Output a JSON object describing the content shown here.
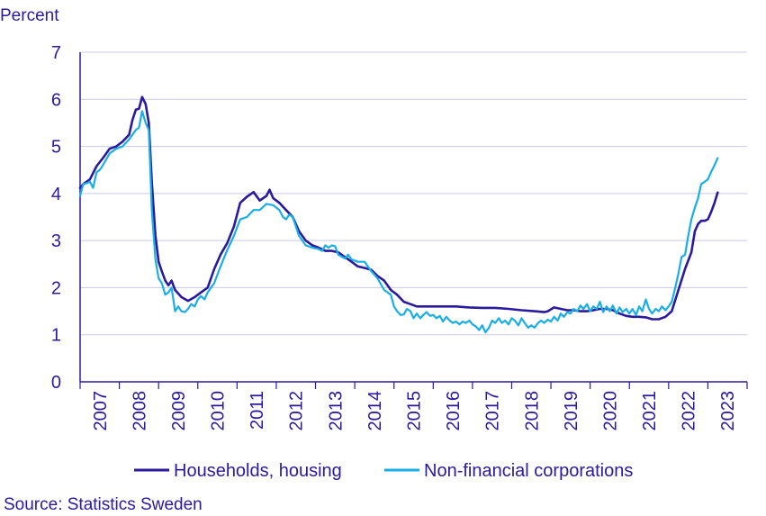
{
  "chart_data": {
    "type": "line",
    "y_unit_label": "Percent",
    "ylim": [
      0,
      7
    ],
    "yticks": [
      0,
      1,
      2,
      3,
      4,
      5,
      6,
      7
    ],
    "xlim": [
      2007,
      2024
    ],
    "xticks": [
      "2007",
      "2008",
      "2009",
      "2010",
      "2011",
      "2012",
      "2013",
      "2014",
      "2015",
      "2016",
      "2017",
      "2018",
      "2019",
      "2020",
      "2021",
      "2022",
      "2023"
    ],
    "grid": true,
    "legend_position": "bottom",
    "series": [
      {
        "name": "Households, housing",
        "color": "#2a1a9e",
        "points": [
          [
            2007.0,
            4.12
          ],
          [
            2007.08,
            4.2
          ],
          [
            2007.25,
            4.3
          ],
          [
            2007.42,
            4.58
          ],
          [
            2007.58,
            4.75
          ],
          [
            2007.75,
            4.95
          ],
          [
            2007.92,
            5.0
          ],
          [
            2008.08,
            5.1
          ],
          [
            2008.25,
            5.25
          ],
          [
            2008.33,
            5.55
          ],
          [
            2008.42,
            5.78
          ],
          [
            2008.5,
            5.8
          ],
          [
            2008.58,
            6.05
          ],
          [
            2008.67,
            5.9
          ],
          [
            2008.75,
            5.5
          ],
          [
            2008.83,
            4.2
          ],
          [
            2008.92,
            3.1
          ],
          [
            2009.0,
            2.55
          ],
          [
            2009.08,
            2.35
          ],
          [
            2009.17,
            2.15
          ],
          [
            2009.25,
            2.05
          ],
          [
            2009.33,
            2.15
          ],
          [
            2009.42,
            1.95
          ],
          [
            2009.58,
            1.8
          ],
          [
            2009.75,
            1.72
          ],
          [
            2009.92,
            1.8
          ],
          [
            2010.08,
            1.9
          ],
          [
            2010.25,
            2.0
          ],
          [
            2010.42,
            2.4
          ],
          [
            2010.58,
            2.7
          ],
          [
            2010.75,
            2.95
          ],
          [
            2010.92,
            3.3
          ],
          [
            2011.08,
            3.8
          ],
          [
            2011.25,
            3.93
          ],
          [
            2011.42,
            4.03
          ],
          [
            2011.58,
            3.85
          ],
          [
            2011.75,
            3.95
          ],
          [
            2011.83,
            4.08
          ],
          [
            2011.92,
            3.9
          ],
          [
            2012.08,
            3.8
          ],
          [
            2012.25,
            3.65
          ],
          [
            2012.42,
            3.5
          ],
          [
            2012.58,
            3.2
          ],
          [
            2012.75,
            3.0
          ],
          [
            2012.92,
            2.9
          ],
          [
            2013.08,
            2.85
          ],
          [
            2013.25,
            2.78
          ],
          [
            2013.42,
            2.78
          ],
          [
            2013.58,
            2.75
          ],
          [
            2013.75,
            2.65
          ],
          [
            2013.92,
            2.55
          ],
          [
            2014.08,
            2.45
          ],
          [
            2014.25,
            2.42
          ],
          [
            2014.42,
            2.38
          ],
          [
            2014.58,
            2.25
          ],
          [
            2014.75,
            2.15
          ],
          [
            2014.92,
            1.95
          ],
          [
            2015.08,
            1.85
          ],
          [
            2015.25,
            1.7
          ],
          [
            2015.42,
            1.65
          ],
          [
            2015.58,
            1.6
          ],
          [
            2015.75,
            1.6
          ],
          [
            2015.92,
            1.6
          ],
          [
            2016.25,
            1.6
          ],
          [
            2016.58,
            1.6
          ],
          [
            2016.92,
            1.58
          ],
          [
            2017.25,
            1.57
          ],
          [
            2017.58,
            1.57
          ],
          [
            2017.92,
            1.55
          ],
          [
            2018.25,
            1.52
          ],
          [
            2018.58,
            1.5
          ],
          [
            2018.83,
            1.48
          ],
          [
            2018.92,
            1.5
          ],
          [
            2019.08,
            1.58
          ],
          [
            2019.25,
            1.55
          ],
          [
            2019.42,
            1.52
          ],
          [
            2019.58,
            1.52
          ],
          [
            2019.75,
            1.5
          ],
          [
            2019.92,
            1.5
          ],
          [
            2020.08,
            1.52
          ],
          [
            2020.25,
            1.55
          ],
          [
            2020.42,
            1.55
          ],
          [
            2020.58,
            1.52
          ],
          [
            2020.75,
            1.45
          ],
          [
            2020.92,
            1.4
          ],
          [
            2021.08,
            1.38
          ],
          [
            2021.25,
            1.38
          ],
          [
            2021.42,
            1.37
          ],
          [
            2021.58,
            1.33
          ],
          [
            2021.75,
            1.33
          ],
          [
            2021.92,
            1.38
          ],
          [
            2022.08,
            1.5
          ],
          [
            2022.25,
            1.95
          ],
          [
            2022.42,
            2.4
          ],
          [
            2022.58,
            2.75
          ],
          [
            2022.67,
            3.2
          ],
          [
            2022.75,
            3.35
          ],
          [
            2022.83,
            3.42
          ],
          [
            2022.92,
            3.42
          ],
          [
            2023.0,
            3.45
          ],
          [
            2023.08,
            3.6
          ],
          [
            2023.17,
            3.8
          ],
          [
            2023.25,
            4.02
          ]
        ]
      },
      {
        "name": "Non-financial corporations",
        "color": "#1aaee6",
        "points": [
          [
            2007.0,
            3.95
          ],
          [
            2007.08,
            4.2
          ],
          [
            2007.17,
            4.22
          ],
          [
            2007.25,
            4.25
          ],
          [
            2007.33,
            4.12
          ],
          [
            2007.42,
            4.45
          ],
          [
            2007.5,
            4.5
          ],
          [
            2007.58,
            4.6
          ],
          [
            2007.75,
            4.85
          ],
          [
            2007.92,
            4.95
          ],
          [
            2008.08,
            5.0
          ],
          [
            2008.25,
            5.15
          ],
          [
            2008.42,
            5.35
          ],
          [
            2008.5,
            5.4
          ],
          [
            2008.58,
            5.75
          ],
          [
            2008.67,
            5.5
          ],
          [
            2008.75,
            5.35
          ],
          [
            2008.83,
            3.6
          ],
          [
            2008.92,
            2.6
          ],
          [
            2009.0,
            2.2
          ],
          [
            2009.08,
            2.1
          ],
          [
            2009.17,
            1.85
          ],
          [
            2009.25,
            1.9
          ],
          [
            2009.33,
            2.0
          ],
          [
            2009.42,
            1.5
          ],
          [
            2009.5,
            1.6
          ],
          [
            2009.58,
            1.5
          ],
          [
            2009.67,
            1.48
          ],
          [
            2009.75,
            1.55
          ],
          [
            2009.83,
            1.65
          ],
          [
            2009.92,
            1.6
          ],
          [
            2010.0,
            1.75
          ],
          [
            2010.08,
            1.82
          ],
          [
            2010.17,
            1.75
          ],
          [
            2010.25,
            1.9
          ],
          [
            2010.42,
            2.1
          ],
          [
            2010.58,
            2.45
          ],
          [
            2010.75,
            2.8
          ],
          [
            2010.92,
            3.1
          ],
          [
            2011.08,
            3.45
          ],
          [
            2011.25,
            3.5
          ],
          [
            2011.42,
            3.65
          ],
          [
            2011.58,
            3.65
          ],
          [
            2011.75,
            3.78
          ],
          [
            2011.92,
            3.75
          ],
          [
            2012.08,
            3.65
          ],
          [
            2012.17,
            3.5
          ],
          [
            2012.25,
            3.45
          ],
          [
            2012.33,
            3.55
          ],
          [
            2012.42,
            3.5
          ],
          [
            2012.58,
            3.1
          ],
          [
            2012.75,
            2.9
          ],
          [
            2012.92,
            2.85
          ],
          [
            2013.08,
            2.82
          ],
          [
            2013.17,
            2.78
          ],
          [
            2013.25,
            2.9
          ],
          [
            2013.33,
            2.85
          ],
          [
            2013.42,
            2.9
          ],
          [
            2013.5,
            2.88
          ],
          [
            2013.58,
            2.7
          ],
          [
            2013.75,
            2.62
          ],
          [
            2013.83,
            2.7
          ],
          [
            2013.92,
            2.6
          ],
          [
            2014.08,
            2.55
          ],
          [
            2014.25,
            2.55
          ],
          [
            2014.42,
            2.35
          ],
          [
            2014.58,
            2.2
          ],
          [
            2014.75,
            1.95
          ],
          [
            2014.92,
            1.85
          ],
          [
            2015.0,
            1.6
          ],
          [
            2015.08,
            1.5
          ],
          [
            2015.17,
            1.42
          ],
          [
            2015.25,
            1.43
          ],
          [
            2015.33,
            1.55
          ],
          [
            2015.42,
            1.5
          ],
          [
            2015.5,
            1.35
          ],
          [
            2015.58,
            1.45
          ],
          [
            2015.67,
            1.35
          ],
          [
            2015.75,
            1.42
          ],
          [
            2015.83,
            1.48
          ],
          [
            2015.92,
            1.4
          ],
          [
            2016.0,
            1.42
          ],
          [
            2016.08,
            1.35
          ],
          [
            2016.17,
            1.4
          ],
          [
            2016.25,
            1.28
          ],
          [
            2016.33,
            1.38
          ],
          [
            2016.42,
            1.3
          ],
          [
            2016.5,
            1.25
          ],
          [
            2016.58,
            1.28
          ],
          [
            2016.67,
            1.22
          ],
          [
            2016.75,
            1.28
          ],
          [
            2016.83,
            1.25
          ],
          [
            2016.92,
            1.3
          ],
          [
            2017.0,
            1.22
          ],
          [
            2017.08,
            1.18
          ],
          [
            2017.17,
            1.1
          ],
          [
            2017.25,
            1.2
          ],
          [
            2017.33,
            1.05
          ],
          [
            2017.42,
            1.15
          ],
          [
            2017.5,
            1.3
          ],
          [
            2017.58,
            1.25
          ],
          [
            2017.67,
            1.35
          ],
          [
            2017.75,
            1.25
          ],
          [
            2017.83,
            1.3
          ],
          [
            2017.92,
            1.22
          ],
          [
            2018.0,
            1.35
          ],
          [
            2018.08,
            1.3
          ],
          [
            2018.17,
            1.2
          ],
          [
            2018.25,
            1.35
          ],
          [
            2018.33,
            1.25
          ],
          [
            2018.42,
            1.15
          ],
          [
            2018.5,
            1.2
          ],
          [
            2018.58,
            1.15
          ],
          [
            2018.67,
            1.25
          ],
          [
            2018.75,
            1.3
          ],
          [
            2018.83,
            1.25
          ],
          [
            2018.92,
            1.32
          ],
          [
            2019.0,
            1.28
          ],
          [
            2019.08,
            1.38
          ],
          [
            2019.17,
            1.3
          ],
          [
            2019.25,
            1.45
          ],
          [
            2019.33,
            1.38
          ],
          [
            2019.42,
            1.48
          ],
          [
            2019.5,
            1.45
          ],
          [
            2019.58,
            1.55
          ],
          [
            2019.67,
            1.5
          ],
          [
            2019.75,
            1.62
          ],
          [
            2019.83,
            1.55
          ],
          [
            2019.92,
            1.65
          ],
          [
            2020.0,
            1.5
          ],
          [
            2020.08,
            1.6
          ],
          [
            2020.17,
            1.55
          ],
          [
            2020.25,
            1.7
          ],
          [
            2020.33,
            1.48
          ],
          [
            2020.42,
            1.6
          ],
          [
            2020.5,
            1.5
          ],
          [
            2020.58,
            1.62
          ],
          [
            2020.67,
            1.45
          ],
          [
            2020.75,
            1.58
          ],
          [
            2020.83,
            1.48
          ],
          [
            2020.92,
            1.55
          ],
          [
            2021.0,
            1.45
          ],
          [
            2021.08,
            1.55
          ],
          [
            2021.17,
            1.42
          ],
          [
            2021.25,
            1.6
          ],
          [
            2021.33,
            1.5
          ],
          [
            2021.42,
            1.75
          ],
          [
            2021.5,
            1.55
          ],
          [
            2021.58,
            1.45
          ],
          [
            2021.67,
            1.55
          ],
          [
            2021.75,
            1.5
          ],
          [
            2021.83,
            1.6
          ],
          [
            2021.92,
            1.52
          ],
          [
            2022.0,
            1.6
          ],
          [
            2022.08,
            1.7
          ],
          [
            2022.17,
            2.0
          ],
          [
            2022.25,
            2.3
          ],
          [
            2022.33,
            2.65
          ],
          [
            2022.42,
            2.7
          ],
          [
            2022.5,
            3.1
          ],
          [
            2022.58,
            3.45
          ],
          [
            2022.67,
            3.7
          ],
          [
            2022.75,
            3.9
          ],
          [
            2022.83,
            4.2
          ],
          [
            2022.92,
            4.25
          ],
          [
            2023.0,
            4.3
          ],
          [
            2023.08,
            4.45
          ],
          [
            2023.17,
            4.6
          ],
          [
            2023.25,
            4.75
          ]
        ]
      }
    ],
    "source": "Source: Statistics Sweden"
  }
}
